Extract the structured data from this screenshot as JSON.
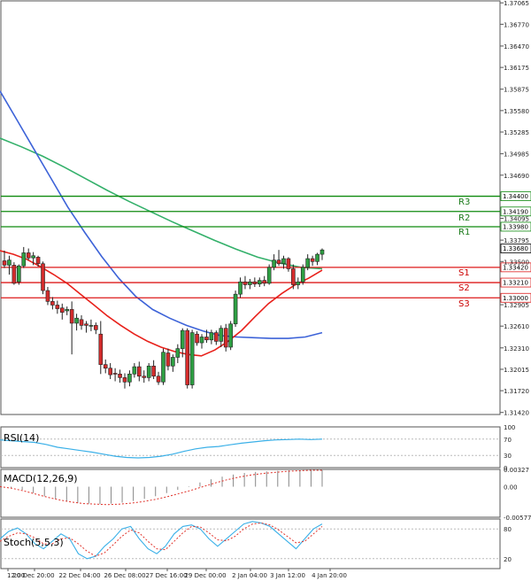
{
  "panels": {
    "rsi": {
      "label": "RSI(14)",
      "ticks": [
        "100",
        "70",
        "30",
        "0"
      ]
    },
    "macd": {
      "label": "MACD(12,26,9)",
      "ticks": [
        "0.00327",
        "0.00",
        "-0.00577"
      ]
    },
    "stoch": {
      "label": "Stoch(5,5,3)",
      "ticks": [
        "80",
        "20"
      ]
    }
  },
  "levels": [
    {
      "name": "R3",
      "value": "1.34400",
      "kind": "resistance"
    },
    {
      "name": "R2",
      "value": "1.34190",
      "kind": "resistance"
    },
    {
      "name": "R1",
      "value": "1.33980",
      "kind": "resistance"
    },
    {
      "name": "S1",
      "value": "1.33420",
      "kind": "support"
    },
    {
      "name": "S2",
      "value": "1.33210",
      "kind": "support"
    },
    {
      "name": "S3",
      "value": "1.33000",
      "kind": "support"
    }
  ],
  "current_price": "1.33680",
  "colors": {
    "bull": "#2ea043",
    "bear": "#d42c2c",
    "ma_fast": "#e8211b",
    "ma_mid": "#3d63d8",
    "ma_slow": "#33b06a",
    "resistance": "#0f8a0f",
    "support": "#dd1a1a",
    "oscillator": "#3ab0e8",
    "signal": "#e0332b"
  },
  "chart_data": {
    "type": "candlestick",
    "symbol_tick_axis": [
      "1.37065",
      "1.36770",
      "1.36470",
      "1.36175",
      "1.35875",
      "1.35580",
      "1.35285",
      "1.34985",
      "1.34690",
      "1.34095",
      "1.33795",
      "1.33500",
      "1.32905",
      "1.32610",
      "1.32310",
      "1.32015",
      "1.31720",
      "1.31420"
    ],
    "x_ticks": [
      "12:00",
      "20 Dec 20:00",
      "22 Dec 04:00",
      "26 Dec 08:00",
      "27 Dec 16:00",
      "29 Dec 00:00",
      "2 Jan 04:00",
      "3 Jan 12:00",
      "4 Jan 20:00"
    ],
    "ylim": [
      1.31392,
      1.37092
    ],
    "candles": [
      {
        "o": 1.3351,
        "h": 1.3365,
        "l": 1.3341,
        "c": 1.3345
      },
      {
        "o": 1.3345,
        "h": 1.3358,
        "l": 1.3332,
        "c": 1.3352
      },
      {
        "o": 1.3345,
        "h": 1.3349,
        "l": 1.3318,
        "c": 1.332
      },
      {
        "o": 1.3322,
        "h": 1.3346,
        "l": 1.3318,
        "c": 1.3344
      },
      {
        "o": 1.3344,
        "h": 1.337,
        "l": 1.3341,
        "c": 1.3362
      },
      {
        "o": 1.3362,
        "h": 1.3368,
        "l": 1.3352,
        "c": 1.3355
      },
      {
        "o": 1.3355,
        "h": 1.3363,
        "l": 1.3345,
        "c": 1.3358
      },
      {
        "o": 1.3356,
        "h": 1.3358,
        "l": 1.3343,
        "c": 1.3347
      },
      {
        "o": 1.3347,
        "h": 1.335,
        "l": 1.3305,
        "c": 1.331
      },
      {
        "o": 1.331,
        "h": 1.3315,
        "l": 1.329,
        "c": 1.3295
      },
      {
        "o": 1.3295,
        "h": 1.3301,
        "l": 1.3284,
        "c": 1.329
      },
      {
        "o": 1.329,
        "h": 1.3296,
        "l": 1.3278,
        "c": 1.3285
      },
      {
        "o": 1.3286,
        "h": 1.3292,
        "l": 1.327,
        "c": 1.328
      },
      {
        "o": 1.3282,
        "h": 1.3288,
        "l": 1.3276,
        "c": 1.3284
      },
      {
        "o": 1.3284,
        "h": 1.3295,
        "l": 1.3222,
        "c": 1.3265
      },
      {
        "o": 1.3265,
        "h": 1.3278,
        "l": 1.3255,
        "c": 1.3272
      },
      {
        "o": 1.327,
        "h": 1.3276,
        "l": 1.3256,
        "c": 1.3262
      },
      {
        "o": 1.3264,
        "h": 1.3268,
        "l": 1.3252,
        "c": 1.3262
      },
      {
        "o": 1.3262,
        "h": 1.327,
        "l": 1.3254,
        "c": 1.3262
      },
      {
        "o": 1.3262,
        "h": 1.3266,
        "l": 1.325,
        "c": 1.3256
      },
      {
        "o": 1.325,
        "h": 1.3268,
        "l": 1.3195,
        "c": 1.3208
      },
      {
        "o": 1.3208,
        "h": 1.3215,
        "l": 1.3196,
        "c": 1.3203
      },
      {
        "o": 1.3203,
        "h": 1.321,
        "l": 1.3188,
        "c": 1.3194
      },
      {
        "o": 1.3196,
        "h": 1.3203,
        "l": 1.3185,
        "c": 1.3195
      },
      {
        "o": 1.3195,
        "h": 1.3201,
        "l": 1.3183,
        "c": 1.319
      },
      {
        "o": 1.319,
        "h": 1.3196,
        "l": 1.3175,
        "c": 1.3184
      },
      {
        "o": 1.3184,
        "h": 1.32,
        "l": 1.3178,
        "c": 1.3195
      },
      {
        "o": 1.3195,
        "h": 1.321,
        "l": 1.319,
        "c": 1.3205
      },
      {
        "o": 1.3205,
        "h": 1.3212,
        "l": 1.3185,
        "c": 1.3192
      },
      {
        "o": 1.3192,
        "h": 1.32,
        "l": 1.3183,
        "c": 1.319
      },
      {
        "o": 1.319,
        "h": 1.321,
        "l": 1.3185,
        "c": 1.3206
      },
      {
        "o": 1.3206,
        "h": 1.3214,
        "l": 1.3188,
        "c": 1.3192
      },
      {
        "o": 1.3192,
        "h": 1.3198,
        "l": 1.318,
        "c": 1.3184
      },
      {
        "o": 1.3184,
        "h": 1.323,
        "l": 1.318,
        "c": 1.3225
      },
      {
        "o": 1.3224,
        "h": 1.323,
        "l": 1.32,
        "c": 1.3206
      },
      {
        "o": 1.3206,
        "h": 1.3222,
        "l": 1.3198,
        "c": 1.3218
      },
      {
        "o": 1.3218,
        "h": 1.3236,
        "l": 1.321,
        "c": 1.323
      },
      {
        "o": 1.323,
        "h": 1.3258,
        "l": 1.3218,
        "c": 1.3255
      },
      {
        "o": 1.3255,
        "h": 1.3258,
        "l": 1.3175,
        "c": 1.318
      },
      {
        "o": 1.318,
        "h": 1.3256,
        "l": 1.3175,
        "c": 1.3252
      },
      {
        "o": 1.325,
        "h": 1.3254,
        "l": 1.3234,
        "c": 1.3238
      },
      {
        "o": 1.3238,
        "h": 1.325,
        "l": 1.323,
        "c": 1.3246
      },
      {
        "o": 1.3246,
        "h": 1.3256,
        "l": 1.3238,
        "c": 1.3242
      },
      {
        "o": 1.3242,
        "h": 1.3256,
        "l": 1.3236,
        "c": 1.3252
      },
      {
        "o": 1.3252,
        "h": 1.3255,
        "l": 1.3235,
        "c": 1.324
      },
      {
        "o": 1.324,
        "h": 1.3262,
        "l": 1.3232,
        "c": 1.3258
      },
      {
        "o": 1.3258,
        "h": 1.3264,
        "l": 1.3226,
        "c": 1.3232
      },
      {
        "o": 1.3232,
        "h": 1.3268,
        "l": 1.3228,
        "c": 1.3264
      },
      {
        "o": 1.3264,
        "h": 1.331,
        "l": 1.326,
        "c": 1.3305
      },
      {
        "o": 1.3305,
        "h": 1.3328,
        "l": 1.33,
        "c": 1.3322
      },
      {
        "o": 1.3322,
        "h": 1.333,
        "l": 1.3312,
        "c": 1.3318
      },
      {
        "o": 1.3318,
        "h": 1.3326,
        "l": 1.3312,
        "c": 1.3322
      },
      {
        "o": 1.3322,
        "h": 1.3328,
        "l": 1.3315,
        "c": 1.3319
      },
      {
        "o": 1.3319,
        "h": 1.3328,
        "l": 1.3315,
        "c": 1.3324
      },
      {
        "o": 1.3324,
        "h": 1.333,
        "l": 1.3316,
        "c": 1.332
      },
      {
        "o": 1.332,
        "h": 1.3346,
        "l": 1.3318,
        "c": 1.3342
      },
      {
        "o": 1.3342,
        "h": 1.336,
        "l": 1.3338,
        "c": 1.3352
      },
      {
        "o": 1.3352,
        "h": 1.3366,
        "l": 1.3344,
        "c": 1.3347
      },
      {
        "o": 1.3347,
        "h": 1.3358,
        "l": 1.334,
        "c": 1.3354
      },
      {
        "o": 1.3354,
        "h": 1.3356,
        "l": 1.3336,
        "c": 1.334
      },
      {
        "o": 1.334,
        "h": 1.3346,
        "l": 1.3312,
        "c": 1.3318
      },
      {
        "o": 1.3318,
        "h": 1.3328,
        "l": 1.3312,
        "c": 1.3322
      },
      {
        "o": 1.3322,
        "h": 1.3346,
        "l": 1.3318,
        "c": 1.3342
      },
      {
        "o": 1.3342,
        "h": 1.336,
        "l": 1.3338,
        "c": 1.3354
      },
      {
        "o": 1.3354,
        "h": 1.3358,
        "l": 1.3344,
        "c": 1.335
      },
      {
        "o": 1.335,
        "h": 1.3362,
        "l": 1.3345,
        "c": 1.336
      },
      {
        "o": 1.336,
        "h": 1.3368,
        "l": 1.3352,
        "c": 1.3366
      }
    ],
    "ma_fast": [
      1.3365,
      1.336,
      1.3353,
      1.3343,
      1.3332,
      1.332,
      1.3305,
      1.329,
      1.3275,
      1.3262,
      1.325,
      1.324,
      1.3232,
      1.3226,
      1.3222,
      1.322,
      1.3228,
      1.324,
      1.3255,
      1.3274,
      1.3292,
      1.3306,
      1.3318,
      1.3327,
      1.3338
    ],
    "ma_mid": [
      1.3585,
      1.3545,
      1.3505,
      1.3465,
      1.3425,
      1.339,
      1.3357,
      1.3327,
      1.3302,
      1.3284,
      1.3272,
      1.3262,
      1.3254,
      1.3248,
      1.3246,
      1.3245,
      1.3244,
      1.3244,
      1.3246,
      1.3252
    ],
    "ma_slow": [
      1.352,
      1.3508,
      1.3495,
      1.348,
      1.3464,
      1.3448,
      1.3433,
      1.3419,
      1.3405,
      1.3392,
      1.3379,
      1.3367,
      1.3356,
      1.3348,
      1.3342,
      1.334
    ],
    "rsi": [
      68,
      66,
      64,
      62,
      57,
      50,
      46,
      42,
      38,
      33,
      28,
      25,
      24,
      25,
      28,
      33,
      40,
      46,
      50,
      52,
      56,
      60,
      63,
      66,
      68,
      69,
      70,
      69,
      70
    ],
    "macd_hist": [
      0.0001,
      -0.0002,
      -0.0006,
      -0.0012,
      -0.0018,
      -0.0024,
      -0.0028,
      -0.0031,
      -0.0032,
      -0.0033,
      -0.0032,
      -0.003,
      -0.0027,
      -0.0023,
      -0.0018,
      -0.0012,
      -0.0006,
      0.0001,
      0.0008,
      0.0014,
      0.0019,
      0.0023,
      0.0026,
      0.0028,
      0.0029,
      0.003,
      0.0031,
      0.0031,
      0.0031,
      0.0031
    ],
    "macd_signal": [
      0.0,
      -0.0003,
      -0.0008,
      -0.0014,
      -0.002,
      -0.0025,
      -0.0029,
      -0.0032,
      -0.0033,
      -0.0034,
      -0.0033,
      -0.0031,
      -0.0028,
      -0.0024,
      -0.0019,
      -0.0013,
      -0.0007,
      0.0,
      0.0007,
      0.0013,
      0.0018,
      0.0022,
      0.0025,
      0.0027,
      0.0029,
      0.003,
      0.0031,
      0.0031
    ],
    "stoch_k": [
      60,
      75,
      82,
      70,
      50,
      40,
      55,
      70,
      60,
      30,
      20,
      25,
      45,
      60,
      80,
      85,
      60,
      40,
      30,
      45,
      70,
      85,
      88,
      80,
      60,
      45,
      60,
      75,
      90,
      95,
      92,
      85,
      70,
      55,
      40,
      60,
      80,
      90
    ],
    "stoch_d": [
      55,
      65,
      72,
      70,
      62,
      50,
      50,
      60,
      62,
      50,
      35,
      25,
      32,
      48,
      65,
      78,
      72,
      55,
      40,
      38,
      55,
      72,
      85,
      84,
      72,
      58,
      56,
      65,
      80,
      90,
      92,
      88,
      78,
      65,
      52,
      55,
      70,
      85
    ]
  }
}
